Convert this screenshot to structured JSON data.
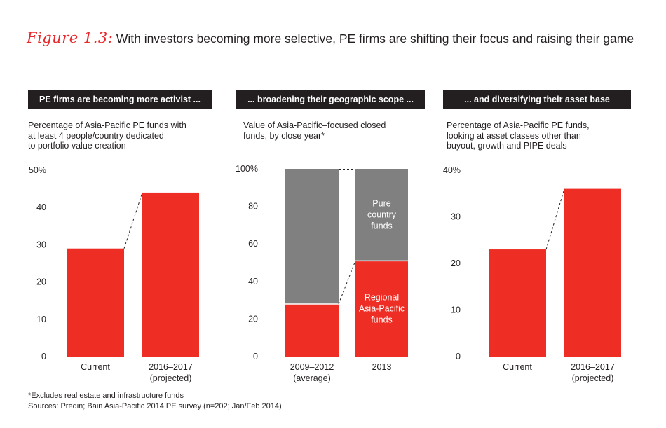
{
  "title": {
    "figure_label": "Figure 1.3:",
    "text": "With investors becoming more selective, PE firms are shifting their focus and raising their game"
  },
  "colors": {
    "red": "#ee2e24",
    "gray": "#808080",
    "dark": "#231f20"
  },
  "chart_data": [
    {
      "type": "bar",
      "header": "PE firms are becoming more activist ...",
      "subtitle": [
        "Percentage of Asia-Pacific PE funds with",
        "at least 4 people/country dedicated",
        "to portfolio value creation"
      ],
      "categories": [
        "Current",
        "2016–2017"
      ],
      "category_sublabels": [
        "",
        "(projected)"
      ],
      "values": [
        29,
        44
      ],
      "ylim": [
        0,
        50
      ],
      "yticks": [
        0,
        10,
        20,
        30,
        40,
        50
      ],
      "ytick_labels": [
        "0",
        "10",
        "20",
        "30",
        "40",
        "50%"
      ],
      "connector": "dashed"
    },
    {
      "type": "bar",
      "stacked": true,
      "header": "... broadening their geographic scope ...",
      "subtitle": [
        "Value of Asia-Pacific–focused closed",
        "funds, by close year*"
      ],
      "categories": [
        "2009–2012",
        "2013"
      ],
      "category_sublabels": [
        "(average)",
        ""
      ],
      "series": [
        {
          "name": "Regional Asia-Pacific funds",
          "label_lines": [
            "Regional",
            "Asia-Pacific",
            "funds"
          ],
          "values": [
            28,
            51
          ]
        },
        {
          "name": "Pure country funds",
          "label_lines": [
            "Pure",
            "country",
            "funds"
          ],
          "values": [
            72,
            49
          ]
        }
      ],
      "ylim": [
        0,
        100
      ],
      "yticks": [
        0,
        20,
        40,
        60,
        80,
        100
      ],
      "ytick_labels": [
        "0",
        "20",
        "40",
        "60",
        "80",
        "100%"
      ],
      "connector": "dashed"
    },
    {
      "type": "bar",
      "header": "... and diversifying their asset base",
      "subtitle": [
        "Percentage of Asia-Pacific PE funds,",
        "looking at asset classes other than",
        "buyout, growth and PIPE deals"
      ],
      "categories": [
        "Current",
        "2016–2017"
      ],
      "category_sublabels": [
        "",
        "(projected)"
      ],
      "values": [
        23,
        36
      ],
      "ylim": [
        0,
        40
      ],
      "yticks": [
        0,
        10,
        20,
        30,
        40
      ],
      "ytick_labels": [
        "0",
        "10",
        "20",
        "30",
        "40%"
      ],
      "connector": "dashed"
    }
  ],
  "footnotes": [
    "*Excludes real estate and infrastructure funds",
    "Sources: Preqin; Bain Asia-Pacific 2014 PE survey (n=202; Jan/Feb 2014)"
  ]
}
